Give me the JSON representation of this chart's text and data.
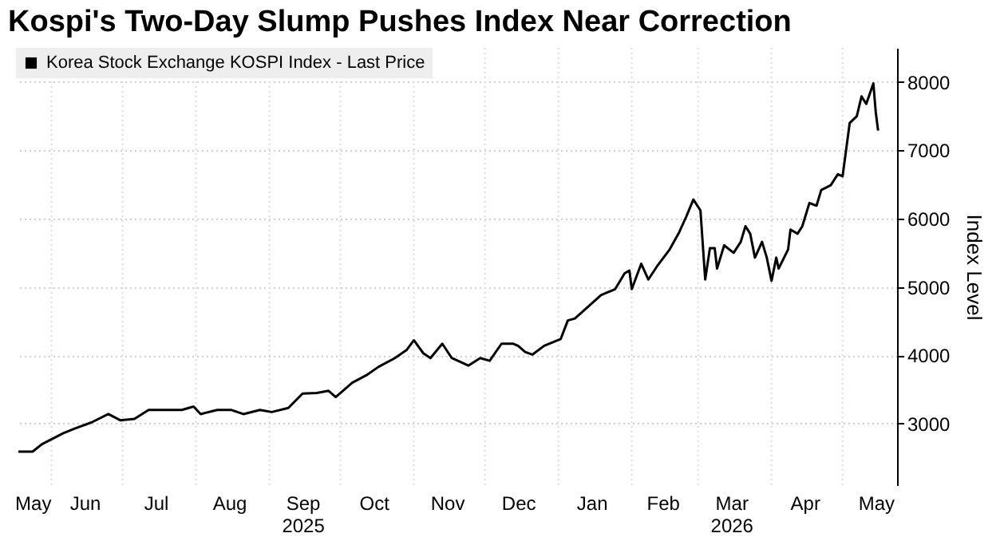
{
  "chart_data": {
    "type": "line",
    "title": "Kospi's Two-Day Slump Pushes Index Near Correction",
    "ylabel": "Index Level",
    "xlim": [
      "2025-05-17",
      "2026-05-24"
    ],
    "ylim": [
      2100,
      8500
    ],
    "yticks": [
      3000,
      4000,
      5000,
      6000,
      7000,
      8000
    ],
    "xticks": [
      {
        "value": "2025-05-24",
        "label": "May"
      },
      {
        "value": "2025-06-01",
        "label": null
      },
      {
        "value": "2025-06-15",
        "label": "Jun"
      },
      {
        "value": "2025-07-01",
        "label": null
      },
      {
        "value": "2025-07-15",
        "label": "Jul"
      },
      {
        "value": "2025-08-01",
        "label": null
      },
      {
        "value": "2025-08-15",
        "label": "Aug"
      },
      {
        "value": "2025-09-01",
        "label": null
      },
      {
        "value": "2025-09-15",
        "label": "Sep\n2025"
      },
      {
        "value": "2025-10-01",
        "label": null
      },
      {
        "value": "2025-10-15",
        "label": "Oct"
      },
      {
        "value": "2025-11-01",
        "label": null
      },
      {
        "value": "2025-11-15",
        "label": "Nov"
      },
      {
        "value": "2025-12-01",
        "label": null
      },
      {
        "value": "2025-12-15",
        "label": "Dec"
      },
      {
        "value": "2026-01-01",
        "label": null
      },
      {
        "value": "2026-01-15",
        "label": "Jan"
      },
      {
        "value": "2026-02-01",
        "label": null
      },
      {
        "value": "2026-02-14",
        "label": "Feb"
      },
      {
        "value": "2026-03-01",
        "label": null
      },
      {
        "value": "2026-03-15",
        "label": "Mar\n2026"
      },
      {
        "value": "2026-04-01",
        "label": null
      },
      {
        "value": "2026-04-15",
        "label": "Apr"
      },
      {
        "value": "2026-05-01",
        "label": null
      },
      {
        "value": "2026-05-15",
        "label": "May"
      }
    ],
    "grid": true,
    "legend": "top left",
    "x": [
      "2025-05-18",
      "2025-05-24",
      "2025-05-28",
      "2025-06-06",
      "2025-06-11",
      "2025-06-18",
      "2025-06-25",
      "2025-06-30",
      "2025-07-06",
      "2025-07-12",
      "2025-07-20",
      "2025-07-26",
      "2025-07-31",
      "2025-08-03",
      "2025-08-10",
      "2025-08-16",
      "2025-08-21",
      "2025-08-28",
      "2025-09-02",
      "2025-09-09",
      "2025-09-15",
      "2025-09-21",
      "2025-09-26",
      "2025-09-29",
      "2025-10-06",
      "2025-10-12",
      "2025-10-17",
      "2025-10-24",
      "2025-10-29",
      "2025-11-01",
      "2025-11-05",
      "2025-11-08",
      "2025-11-13",
      "2025-11-17",
      "2025-11-24",
      "2025-11-29",
      "2025-12-03",
      "2025-12-08",
      "2025-12-13",
      "2025-12-15",
      "2025-12-18",
      "2025-12-21",
      "2025-12-26",
      "2026-01-02",
      "2026-01-05",
      "2026-01-08",
      "2026-01-19",
      "2026-01-25",
      "2026-01-29",
      "2026-01-31",
      "2026-02-01",
      "2026-02-05",
      "2026-02-08",
      "2026-02-12",
      "2026-02-17",
      "2026-02-21",
      "2026-02-24",
      "2026-02-27",
      "2026-03-02",
      "2026-03-04",
      "2026-03-06",
      "2026-03-08",
      "2026-03-09",
      "2026-03-12",
      "2026-03-16",
      "2026-03-19",
      "2026-03-21",
      "2026-03-23",
      "2026-03-25",
      "2026-03-28",
      "2026-03-30",
      "2026-04-01",
      "2026-04-03",
      "2026-04-04",
      "2026-04-08",
      "2026-04-09",
      "2026-04-12",
      "2026-04-14",
      "2026-04-17",
      "2026-04-20",
      "2026-04-22",
      "2026-04-26",
      "2026-04-29",
      "2026-05-01",
      "2026-05-04",
      "2026-05-07",
      "2026-05-09",
      "2026-05-11",
      "2026-05-14",
      "2026-05-15",
      "2026-05-16"
    ],
    "series": [
      {
        "name": "Korea Stock Exchange KOSPI Index - Last Price",
        "color": "#000000",
        "values": [
          2590,
          2590,
          2700,
          2860,
          2930,
          3020,
          3140,
          3050,
          3070,
          3200,
          3200,
          3200,
          3250,
          3140,
          3200,
          3200,
          3140,
          3200,
          3170,
          3230,
          3440,
          3450,
          3480,
          3390,
          3600,
          3710,
          3830,
          3960,
          4080,
          4220,
          4030,
          3960,
          4170,
          3960,
          3850,
          3960,
          3920,
          4170,
          4170,
          4140,
          4050,
          4010,
          4140,
          4240,
          4510,
          4540,
          4880,
          4970,
          5200,
          5240,
          4970,
          5340,
          5110,
          5320,
          5550,
          5800,
          6030,
          6280,
          6120,
          5110,
          5570,
          5570,
          5270,
          5610,
          5500,
          5660,
          5890,
          5780,
          5430,
          5660,
          5430,
          5090,
          5430,
          5270,
          5550,
          5840,
          5780,
          5890,
          6230,
          6190,
          6420,
          6490,
          6650,
          6620,
          7400,
          7500,
          7790,
          7680,
          7980,
          7560,
          7290
        ]
      }
    ]
  }
}
